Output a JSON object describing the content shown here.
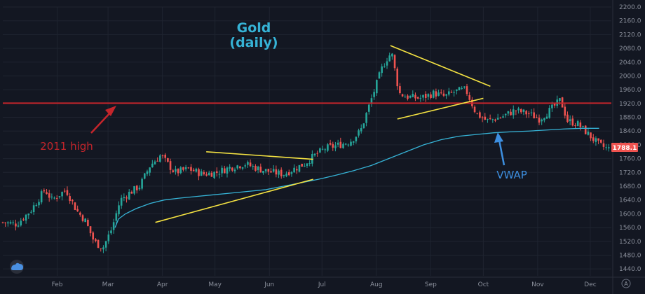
{
  "chart_data": {
    "type": "candlestick",
    "title": "Gold",
    "subtitle": "(daily)",
    "last_price": "1788.1",
    "ylim": [
      1420,
      2200
    ],
    "y_ticks": [
      "2200.0",
      "2160.0",
      "2120.0",
      "2080.0",
      "2040.0",
      "2000.0",
      "1960.0",
      "1920.0",
      "1880.0",
      "1840.0",
      "1800.0",
      "1760.0",
      "1720.0",
      "1680.0",
      "1640.0",
      "1600.0",
      "1560.0",
      "1520.0",
      "1480.0",
      "1440.0"
    ],
    "x_ticks": [
      "Feb",
      "Mar",
      "Apr",
      "May",
      "Jun",
      "Jul",
      "Aug",
      "Sep",
      "Oct",
      "Nov",
      "Dec"
    ],
    "x_tick_days": [
      31,
      60,
      91,
      121,
      152,
      182,
      213,
      244,
      274,
      305,
      335
    ],
    "x_range_days": [
      0,
      347
    ],
    "horizontal_line": {
      "label": "2011 high",
      "value": 1921
    },
    "vwap_label": "VWAP",
    "colors": {
      "up": "#26a69a",
      "down": "#ef5350",
      "hline": "#c4252b",
      "vwap": "#36b3d6",
      "trend": "#f5e342",
      "bg": "#131722",
      "grid": "#1f2430"
    },
    "trendlines": [
      {
        "x0": 116,
        "y0": 1780,
        "x1": 177,
        "y1": 1758
      },
      {
        "x0": 87,
        "y0": 1575,
        "x1": 177,
        "y1": 1700
      },
      {
        "x0": 221,
        "y0": 2088,
        "x1": 278,
        "y1": 1970
      },
      {
        "x0": 225,
        "y0": 1875,
        "x1": 274,
        "y1": 1935
      }
    ],
    "ohlc_anchor_points": [
      [
        0,
        1575
      ],
      [
        8,
        1570
      ],
      [
        16,
        1610
      ],
      [
        24,
        1670
      ],
      [
        28,
        1640
      ],
      [
        36,
        1670
      ],
      [
        42,
        1610
      ],
      [
        47,
        1580
      ],
      [
        52,
        1520
      ],
      [
        57,
        1500
      ],
      [
        62,
        1555
      ],
      [
        67,
        1640
      ],
      [
        72,
        1660
      ],
      [
        78,
        1680
      ],
      [
        84,
        1740
      ],
      [
        90,
        1770
      ],
      [
        98,
        1720
      ],
      [
        106,
        1730
      ],
      [
        114,
        1715
      ],
      [
        122,
        1720
      ],
      [
        130,
        1735
      ],
      [
        138,
        1745
      ],
      [
        146,
        1730
      ],
      [
        154,
        1720
      ],
      [
        160,
        1715
      ],
      [
        166,
        1730
      ],
      [
        172,
        1745
      ],
      [
        178,
        1770
      ],
      [
        184,
        1790
      ],
      [
        192,
        1800
      ],
      [
        198,
        1810
      ],
      [
        204,
        1840
      ],
      [
        208,
        1900
      ],
      [
        212,
        1960
      ],
      [
        216,
        2020
      ],
      [
        220,
        2060
      ],
      [
        222,
        2060
      ],
      [
        226,
        1950
      ],
      [
        230,
        1940
      ],
      [
        238,
        1935
      ],
      [
        246,
        1950
      ],
      [
        252,
        1940
      ],
      [
        258,
        1955
      ],
      [
        264,
        1960
      ],
      [
        270,
        1890
      ],
      [
        276,
        1870
      ],
      [
        284,
        1880
      ],
      [
        292,
        1900
      ],
      [
        300,
        1890
      ],
      [
        306,
        1875
      ],
      [
        312,
        1900
      ],
      [
        318,
        1930
      ],
      [
        322,
        1870
      ],
      [
        328,
        1860
      ],
      [
        334,
        1830
      ],
      [
        340,
        1800
      ],
      [
        345,
        1788
      ]
    ],
    "vwap_anchor_points": [
      [
        64,
        1560
      ],
      [
        66,
        1585
      ],
      [
        70,
        1600
      ],
      [
        76,
        1615
      ],
      [
        84,
        1630
      ],
      [
        92,
        1640
      ],
      [
        100,
        1645
      ],
      [
        110,
        1650
      ],
      [
        120,
        1655
      ],
      [
        130,
        1660
      ],
      [
        140,
        1665
      ],
      [
        150,
        1670
      ],
      [
        160,
        1680
      ],
      [
        170,
        1690
      ],
      [
        180,
        1700
      ],
      [
        190,
        1712
      ],
      [
        200,
        1725
      ],
      [
        210,
        1740
      ],
      [
        220,
        1760
      ],
      [
        230,
        1780
      ],
      [
        240,
        1800
      ],
      [
        250,
        1815
      ],
      [
        260,
        1825
      ],
      [
        270,
        1830
      ],
      [
        280,
        1835
      ],
      [
        290,
        1838
      ],
      [
        300,
        1840
      ],
      [
        310,
        1843
      ],
      [
        320,
        1846
      ],
      [
        330,
        1848
      ],
      [
        340,
        1848
      ]
    ]
  }
}
